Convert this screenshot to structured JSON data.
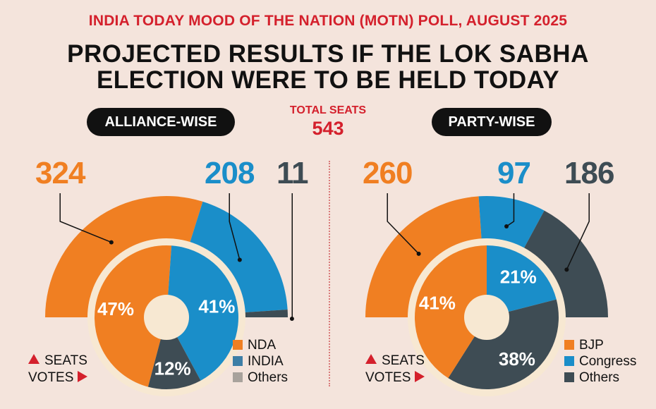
{
  "kicker": "INDIA TODAY MOOD OF THE NATION (MOTN) POLL, AUGUST 2025",
  "title_line1": "PROJECTED RESULTS IF THE LOK SABHA",
  "title_line2": "ELECTION WERE TO BE HELD TODAY",
  "total_seats_label": "TOTAL SEATS",
  "total_seats_value": "543",
  "seats_key": "SEATS",
  "votes_key": "VOTES",
  "colors": {
    "orange": "#f07f22",
    "blue": "#1a8ec9",
    "slate": "#3e4c54",
    "grey": "#a8a29c",
    "cream": "#f7e8d2",
    "red": "#d4202c"
  },
  "chart_data": [
    {
      "type": "pie",
      "title": "ALLIANCE-WISE",
      "seats": {
        "categories": [
          "NDA",
          "INDIA",
          "Others"
        ],
        "values": [
          324,
          208,
          11
        ],
        "labels": [
          "324",
          "208",
          "11"
        ],
        "total": 543
      },
      "votes": {
        "categories": [
          "NDA",
          "INDIA",
          "Others"
        ],
        "values": [
          47,
          41,
          12
        ],
        "labels": [
          "47%",
          "41%",
          "12%"
        ]
      },
      "legend": [
        "NDA",
        "INDIA",
        "Others"
      ]
    },
    {
      "type": "pie",
      "title": "PARTY-WISE",
      "seats": {
        "categories": [
          "BJP",
          "Congress",
          "Others"
        ],
        "values": [
          260,
          97,
          186
        ],
        "labels": [
          "260",
          "97",
          "186"
        ],
        "total": 543
      },
      "votes": {
        "categories": [
          "BJP",
          "Congress",
          "Others"
        ],
        "values": [
          41,
          21,
          38
        ],
        "labels": [
          "41%",
          "21%",
          "38%"
        ]
      },
      "legend": [
        "BJP",
        "Congress",
        "Others"
      ]
    }
  ]
}
